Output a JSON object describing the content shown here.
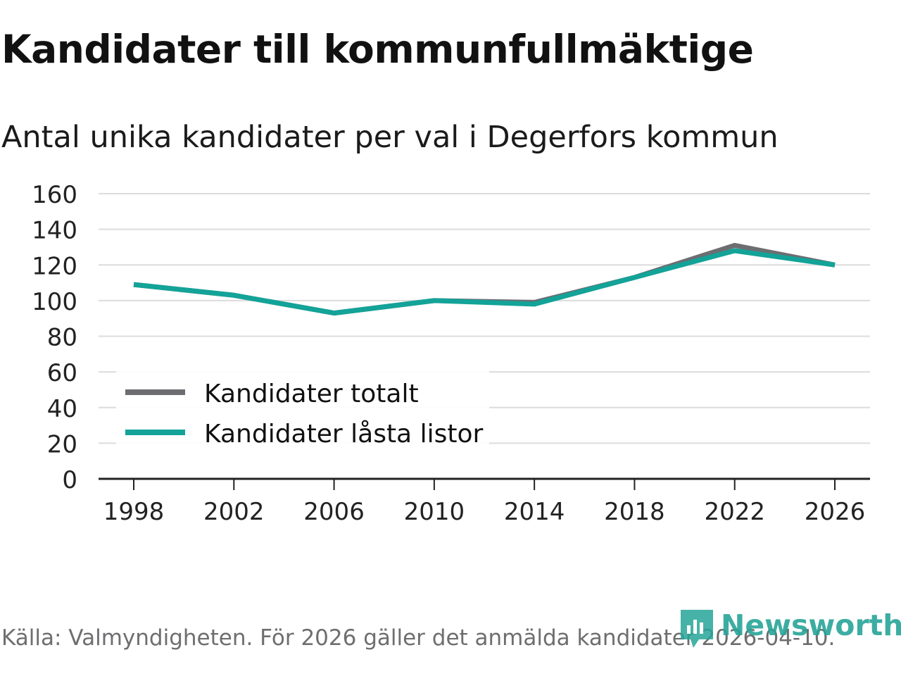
{
  "title": "Kandidater till kommunfullmäktige",
  "subtitle": "Antal unika kandidater per val i Degerfors kommun",
  "footer": "Källa: Valmyndigheten. För 2026 gäller det anmälda kandidater 2026-04-10.",
  "brand": "Newsworthy",
  "colors": {
    "total": "#6d6d72",
    "locked": "#13a398",
    "grid": "#dcdcdc",
    "axis": "#222222",
    "brand": "#27a598"
  },
  "chart_data": {
    "type": "line",
    "title": "Kandidater till kommunfullmäktige",
    "subtitle": "Antal unika kandidater per val i Degerfors kommun",
    "x": [
      1998,
      2002,
      2006,
      2010,
      2014,
      2018,
      2022,
      2026
    ],
    "xticks": [
      "1998",
      "2002",
      "2006",
      "2010",
      "2014",
      "2018",
      "2022",
      "2026"
    ],
    "yticks": [
      "0",
      "20",
      "40",
      "60",
      "80",
      "100",
      "120",
      "140",
      "160"
    ],
    "ylim": [
      0,
      160
    ],
    "series": [
      {
        "name": "Kandidater totalt",
        "values": [
          109,
          103,
          93,
          100,
          99,
          113,
          131,
          120
        ]
      },
      {
        "name": "Kandidater låsta listor",
        "values": [
          109,
          103,
          93,
          100,
          98,
          113,
          128,
          120
        ]
      }
    ],
    "legend_position": "bottom-left"
  }
}
